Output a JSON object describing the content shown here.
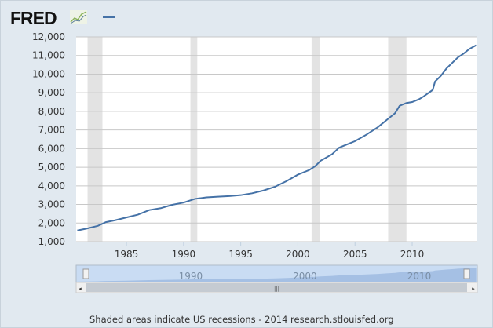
{
  "header": {
    "logo_text": "FRED",
    "logo_icon": "chart-sparkline-icon",
    "legend_series_color": "#4572a7"
  },
  "footer": {
    "note": "Shaded areas indicate US recessions - 2014 research.stlouisfed.org"
  },
  "colors": {
    "line": "#4572a7",
    "recession": "#e3e3e3",
    "background": "#e1e9f0",
    "navigator_fill": "#9cb9e0"
  },
  "chart_data": {
    "type": "line",
    "title": "",
    "xlabel": "",
    "ylabel": "",
    "xlim": [
      1980.6,
      2015.7
    ],
    "ylim": [
      1000,
      12000
    ],
    "yticks": [
      1000,
      2000,
      3000,
      4000,
      5000,
      6000,
      7000,
      8000,
      9000,
      10000,
      11000,
      12000
    ],
    "ytick_labels": [
      "1,000",
      "2,000",
      "3,000",
      "4,000",
      "5,000",
      "6,000",
      "7,000",
      "8,000",
      "9,000",
      "10,000",
      "11,000",
      "12,000"
    ],
    "xticks": [
      1985,
      1990,
      1995,
      2000,
      2005,
      2010
    ],
    "xtick_labels": [
      "1985",
      "1990",
      "1995",
      "2000",
      "2005",
      "2010"
    ],
    "navigator_labels": [
      "1990",
      "2000",
      "2010"
    ],
    "grid": true,
    "recessions": [
      [
        1981.6,
        1982.9
      ],
      [
        1990.6,
        1991.2
      ],
      [
        2001.2,
        2001.9
      ],
      [
        2007.9,
        2009.5
      ]
    ],
    "series": [
      {
        "x": [
          1980.7,
          1981.5,
          1982.5,
          1983.2,
          1984,
          1985,
          1986,
          1987,
          1988,
          1989,
          1990,
          1991,
          1992,
          1993,
          1994,
          1995,
          1996,
          1997,
          1998,
          1999,
          2000,
          2001,
          2001.5,
          2002,
          2003,
          2003.6,
          2004,
          2005,
          2006,
          2007,
          2007.9,
          2008.5,
          2008.9,
          2009.5,
          2010,
          2010.6,
          2011,
          2011.8,
          2012,
          2012.5,
          2013,
          2013.5,
          2014,
          2014.5,
          2015,
          2015.6
        ],
        "y": [
          1600,
          1700,
          1850,
          2050,
          2150,
          2300,
          2450,
          2700,
          2800,
          2980,
          3100,
          3300,
          3380,
          3420,
          3450,
          3500,
          3600,
          3750,
          3950,
          4250,
          4600,
          4850,
          5050,
          5350,
          5700,
          6050,
          6150,
          6400,
          6750,
          7150,
          7600,
          7900,
          8300,
          8450,
          8500,
          8650,
          8800,
          9150,
          9600,
          9900,
          10300,
          10600,
          10900,
          11100,
          11350,
          11550
        ]
      }
    ]
  }
}
